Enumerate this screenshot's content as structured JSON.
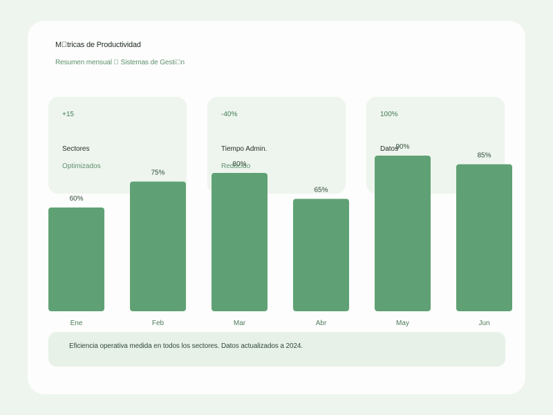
{
  "header": {
    "title": "M\u0000tricas de Productividad",
    "subtitle": "Resumen mensual \u0000 Sistemas de Gesti\u0000n"
  },
  "stats": [
    {
      "value": "+15",
      "label": "Sectores",
      "sub": "Optimizados"
    },
    {
      "value": "-40%",
      "label": "Tiempo Admin.",
      "sub": "Reducido"
    },
    {
      "value": "100%",
      "label": "Datos",
      "sub": ""
    }
  ],
  "colors": {
    "bar": "#5fa174",
    "value_label": "#2f4a37",
    "axis_label": "#4f7a5c"
  },
  "chart_data": {
    "type": "bar",
    "categories": [
      "Ene",
      "Feb",
      "Mar",
      "Abr",
      "May",
      "Jun"
    ],
    "values": [
      60,
      75,
      80,
      65,
      90,
      85
    ],
    "value_labels": [
      "60%",
      "75%",
      "80%",
      "65%",
      "90%",
      "85%"
    ],
    "title": "",
    "xlabel": "",
    "ylabel": "",
    "ylim": [
      0,
      100
    ],
    "grid": false
  },
  "footer": {
    "text": "Eficiencia operativa medida en todos los sectores. Datos actualizados a 2024."
  }
}
